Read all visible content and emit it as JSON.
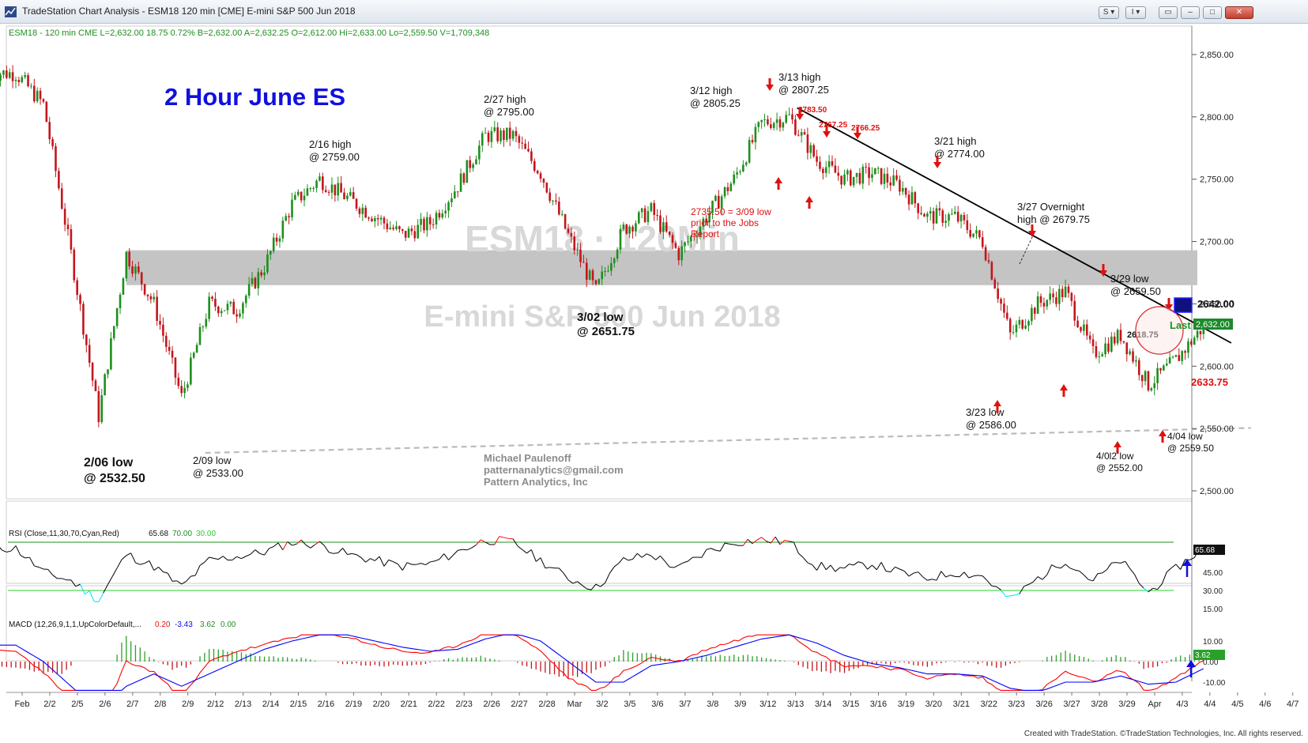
{
  "window": {
    "title": "TradeStation Chart Analysis - ESM18 120 min [CME] E-mini S&P 500 Jun 2018",
    "buttons": {
      "s_label": "S",
      "i_label": "I"
    }
  },
  "colors": {
    "up_candle": "#1d8f1d",
    "down_candle": "#c2161c",
    "resistance_band": "#c4c4c4",
    "title_blue": "#1010e0",
    "annotation_red": "#e01010",
    "last_price_bg": "#1a8a2a",
    "rsi_line": "#000000",
    "rsi_oversold": "#00e0ff",
    "rsi_overbought": "#ff0000",
    "macd_line": "#ff0000",
    "signal_line": "#0000ff",
    "histogram": "#2aa02a"
  },
  "symbol_header": {
    "text": "ESM18 - 120 min  CME  L=2,632.00  18.75  0.72%  B=2,632.00  A=2,632.25  O=2,612.00  Hi=2,633.00  Lo=2,559.50  V=1,709,348"
  },
  "watermark": {
    "line1": "ESM18 · 120Min",
    "line2": "E-mini S&P 500 Jun 2018"
  },
  "chart_title": "2 Hour June ES",
  "author": {
    "name": "Michael Paulenoff",
    "email": "patternanalytics@gmail.com",
    "company": "Pattern Analytics, Inc"
  },
  "price_scale": {
    "labels": [
      "2,850.00",
      "2,800.00",
      "2,750.00",
      "2,700.00",
      "2,650.00",
      "2,600.00",
      "2,550.00",
      "2,500.00"
    ],
    "last_price_label": "2,632.00"
  },
  "annotations": {
    "low_0206": [
      "2/06 low",
      "@ 2532.50"
    ],
    "low_0209": [
      "2/09 low",
      "@ 2533.00"
    ],
    "high_0216": [
      "2/16 high",
      "@ 2759.00"
    ],
    "high_0227": [
      "2/27 high",
      "@ 2795.00"
    ],
    "low_0302": [
      "3/02 low",
      "@ 2651.75"
    ],
    "high_0312": [
      "3/12 high",
      "@ 2805.25"
    ],
    "high_0313": [
      "3/13 high",
      "@ 2807.25"
    ],
    "level_278350": "2783.50",
    "level_276725": "2767.25",
    "level_276625": "2766.25",
    "jobs_note": [
      "2735.50 = 3/09 low",
      "prior to the Jobs",
      "Report"
    ],
    "high_0321": [
      "3/21 high",
      "@ 2774.00"
    ],
    "overnight_0327": [
      "3/27 Overnight",
      "high @ 2679.75"
    ],
    "low_0329": [
      "3/29 low",
      "@ 2659.50"
    ],
    "target_price": "2642.00",
    "last_label": "Last",
    "level_261875": "2618.75",
    "level_263375": "2633.75",
    "low_0323": [
      "3/23 low",
      "@ 2586.00"
    ],
    "low_0402": [
      "4/0l2 low",
      "@ 2552.00"
    ],
    "low_0404": [
      "4/04 low",
      "@ 2559.50"
    ]
  },
  "rsi": {
    "header": {
      "name": "RSI (Close,11,30,70,Cyan,Red)",
      "value": "65.68",
      "overbought": "70.00",
      "oversold": "30.00"
    },
    "scale_labels": [
      "45.00",
      "30.00",
      "15.00"
    ],
    "last_value_label": "65.68"
  },
  "macd": {
    "header": {
      "name": "MACD (12,26,9,1,1,UpColorDefault,...",
      "macd": "0.20",
      "signal": "-3.43",
      "hist": "3.62",
      "zero": "0.00"
    },
    "scale_labels": [
      "10.00",
      "0.00",
      "-10.00"
    ],
    "last_value_label": "3.62"
  },
  "time_axis": {
    "labels": [
      "Feb",
      "2/2",
      "2/5",
      "2/6",
      "2/7",
      "2/8",
      "2/9",
      "2/12",
      "2/13",
      "2/14",
      "2/15",
      "2/16",
      "2/19",
      "2/20",
      "2/21",
      "2/22",
      "2/23",
      "2/26",
      "2/27",
      "2/28",
      "Mar",
      "3/2",
      "3/5",
      "3/6",
      "3/7",
      "3/8",
      "3/9",
      "3/12",
      "3/13",
      "3/14",
      "3/15",
      "3/16",
      "3/19",
      "3/20",
      "3/21",
      "3/22",
      "3/23",
      "3/26",
      "3/27",
      "3/28",
      "3/29",
      "Apr",
      "4/3",
      "4/4",
      "4/5",
      "4/6",
      "4/7"
    ]
  },
  "footer": {
    "credit": "Created with TradeStation. ©TradeStation Technologies, Inc. All rights reserved."
  },
  "chart_data": {
    "type": "candlestick",
    "title": "2 Hour June ES",
    "ylim": [
      2475,
      2865
    ],
    "x": [
      "Feb",
      "2/2",
      "2/5",
      "2/6",
      "2/7",
      "2/8",
      "2/9",
      "2/12",
      "2/13",
      "2/14",
      "2/15",
      "2/16",
      "2/19",
      "2/20",
      "2/21",
      "2/22",
      "2/23",
      "2/26",
      "2/27",
      "2/28",
      "Mar",
      "3/2",
      "3/5",
      "3/6",
      "3/7",
      "3/8",
      "3/9",
      "3/12",
      "3/13",
      "3/14",
      "3/15",
      "3/16",
      "3/19",
      "3/20",
      "3/21",
      "3/22",
      "3/23",
      "3/26",
      "3/27",
      "3/28",
      "3/29",
      "Apr",
      "4/3",
      "4/4"
    ],
    "close": [
      2835,
      2810,
      2690,
      2560,
      2690,
      2650,
      2575,
      2650,
      2645,
      2680,
      2730,
      2750,
      2735,
      2720,
      2705,
      2715,
      2745,
      2785,
      2785,
      2755,
      2705,
      2660,
      2710,
      2725,
      2690,
      2720,
      2750,
      2795,
      2800,
      2765,
      2750,
      2755,
      2745,
      2720,
      2720,
      2700,
      2625,
      2650,
      2660,
      2610,
      2625,
      2585,
      2605,
      2632
    ],
    "resistance_zone": [
      2665,
      2693
    ],
    "trendline": {
      "from": [
        "3/13",
        2807.25
      ],
      "to": [
        "4/4",
        2625
      ]
    },
    "support_line": {
      "from": [
        "2/9",
        2533
      ],
      "to": [
        "4/4",
        2553
      ]
    },
    "rsi": {
      "values": [
        65,
        45,
        38,
        22,
        60,
        50,
        33,
        55,
        58,
        62,
        70,
        68,
        60,
        55,
        50,
        52,
        62,
        72,
        70,
        55,
        40,
        32,
        55,
        60,
        48,
        62,
        70,
        72,
        70,
        50,
        48,
        52,
        45,
        40,
        45,
        42,
        22,
        40,
        55,
        38,
        55,
        28,
        48,
        65.68
      ],
      "bounds": [
        30,
        70
      ],
      "ylim": [
        8,
        75
      ]
    },
    "macd": {
      "macd": [
        5,
        -5,
        -20,
        -30,
        0,
        -5,
        -18,
        0,
        5,
        8,
        12,
        14,
        12,
        8,
        5,
        4,
        8,
        14,
        14,
        5,
        -8,
        -15,
        -5,
        2,
        0,
        6,
        10,
        14,
        14,
        4,
        -2,
        -2,
        -4,
        -8,
        -6,
        -8,
        -18,
        -15,
        -5,
        -10,
        -4,
        -15,
        -8,
        0.2
      ],
      "signal": [
        8,
        0,
        -12,
        -25,
        -12,
        -6,
        -12,
        -6,
        0,
        6,
        10,
        13,
        13,
        10,
        7,
        5,
        6,
        11,
        14,
        10,
        0,
        -10,
        -10,
        -2,
        0,
        3,
        7,
        11,
        13,
        9,
        3,
        -1,
        -3,
        -6,
        -6,
        -7,
        -13,
        -15,
        -10,
        -10,
        -7,
        -11,
        -10,
        -3.43
      ],
      "histogram_last": 3.62,
      "ylim": [
        -14,
        13
      ]
    }
  }
}
